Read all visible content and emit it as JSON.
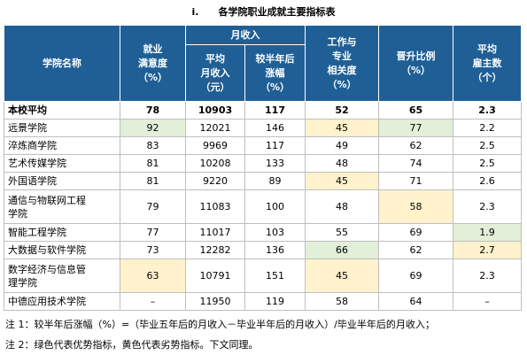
{
  "caption": {
    "number": "i.",
    "title": "各学院职业成就主要指标表"
  },
  "headers": {
    "college": "学院名称",
    "satisfaction": [
      "就业",
      "满意度",
      "（%）"
    ],
    "income_group": "月收入",
    "avg_income": [
      "平均",
      "月收入",
      "（元）"
    ],
    "income_growth": [
      "较半年后",
      "涨幅",
      "（%）"
    ],
    "relevance": [
      "工作与",
      "专业",
      "相关度",
      "（%）"
    ],
    "promotion": [
      "晋升比例",
      "（%）"
    ],
    "employers": [
      "平均",
      "雇主数",
      "（个）"
    ]
  },
  "rows": [
    {
      "name": [
        "本校平均"
      ],
      "v": [
        "78",
        "10903",
        "117",
        "52",
        "65",
        "2.3"
      ],
      "hl": [
        "",
        "",
        "",
        "",
        "",
        ""
      ]
    },
    {
      "name": [
        "远景学院"
      ],
      "v": [
        "92",
        "12021",
        "146",
        "45",
        "77",
        "2.2"
      ],
      "hl": [
        "good",
        "",
        "",
        "bad",
        "good",
        ""
      ]
    },
    {
      "name": [
        "淬炼商学院"
      ],
      "v": [
        "83",
        "9969",
        "117",
        "49",
        "62",
        "2.5"
      ],
      "hl": [
        "",
        "",
        "",
        "",
        "",
        ""
      ]
    },
    {
      "name": [
        "艺术传媒学院"
      ],
      "v": [
        "81",
        "10208",
        "133",
        "48",
        "74",
        "2.5"
      ],
      "hl": [
        "",
        "",
        "",
        "",
        "",
        ""
      ]
    },
    {
      "name": [
        "外国语学院"
      ],
      "v": [
        "81",
        "9220",
        "89",
        "45",
        "71",
        "2.6"
      ],
      "hl": [
        "",
        "",
        "",
        "bad",
        "",
        ""
      ]
    },
    {
      "name": [
        "通信与物联网工程",
        "学院"
      ],
      "v": [
        "79",
        "11083",
        "100",
        "48",
        "58",
        "2.3"
      ],
      "hl": [
        "",
        "",
        "",
        "",
        "bad",
        ""
      ]
    },
    {
      "name": [
        "智能工程学院"
      ],
      "v": [
        "77",
        "11017",
        "103",
        "55",
        "69",
        "1.9"
      ],
      "hl": [
        "",
        "",
        "",
        "",
        "",
        "good"
      ]
    },
    {
      "name": [
        "大数据与软件学院"
      ],
      "v": [
        "73",
        "12282",
        "136",
        "66",
        "62",
        "2.7"
      ],
      "hl": [
        "",
        "",
        "",
        "good",
        "",
        "bad"
      ]
    },
    {
      "name": [
        "数字经济与信息管",
        "理学院"
      ],
      "v": [
        "63",
        "10791",
        "151",
        "45",
        "69",
        "2.3"
      ],
      "hl": [
        "bad",
        "",
        "",
        "bad",
        "",
        ""
      ]
    },
    {
      "name": [
        "中德应用技术学院"
      ],
      "v": [
        "–",
        "11950",
        "119",
        "58",
        "64",
        "–"
      ],
      "hl": [
        "",
        "",
        "",
        "",
        "",
        ""
      ]
    }
  ],
  "notes": [
    "注 1：较半年后涨幅（%）=（毕业五年后的月收入－毕业半年后的月收入）/毕业半年后的月收入；",
    "注 2：绿色代表优势指标，黄色代表劣势指标。下文同理。"
  ]
}
